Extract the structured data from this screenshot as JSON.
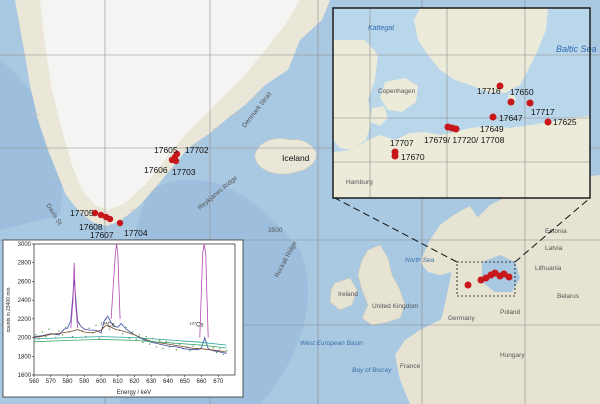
{
  "colors": {
    "ocean": "#a9c8e2",
    "ocean_deep": "#96b9da",
    "land": "#e9e4d6",
    "greenland_ice": "#f3f3f1",
    "inset_sea": "#b9d6ea",
    "inset_land": "#eceadd",
    "marker": "#c8171b",
    "grid": "#8a8a8a"
  },
  "main_map": {
    "labels": {
      "iceland": "Iceland",
      "denmark_strait": "Denmark Strait",
      "davis_strait": "Davis St",
      "rockall": "Rockall Ridge",
      "reykjanes": "Reykjanes Ridge",
      "north_sea": "North Sea",
      "ireland": "Ireland",
      "uk": "United Kingdom",
      "germany": "Germany",
      "poland": "Poland",
      "france": "France",
      "belarus": "Belarus",
      "lithuania": "Lithuania",
      "latvia": "Latvia",
      "estonia": "Estonia",
      "hungary": "Hungary",
      "west_european_basin": "West European Basin",
      "bay_of_biscay": "Bay of Biscay",
      "depth_3500": "3500",
      "greenland_inset_edge": "ark"
    },
    "stations": [
      {
        "id": "17606",
        "label": "17606"
      },
      {
        "id": "17605",
        "label": "17605"
      },
      {
        "id": "17702",
        "label": "17702"
      },
      {
        "id": "17703",
        "label": "17703"
      },
      {
        "id": "17705",
        "label": "17705"
      },
      {
        "id": "17608",
        "label": "17608"
      },
      {
        "id": "17607",
        "label": "17607"
      },
      {
        "id": "17704",
        "label": "17704"
      }
    ]
  },
  "inset_map": {
    "labels": {
      "kattegat": "Kattegat",
      "baltic_sea": "Baltic Sea",
      "copenhagen": "Copenhagen",
      "hamburg": "Hamburg"
    },
    "stations": [
      {
        "id": "17716",
        "label": "17716"
      },
      {
        "id": "17650",
        "label": "17650"
      },
      {
        "id": "17717",
        "label": "17717"
      },
      {
        "id": "17647",
        "label": "17647"
      },
      {
        "id": "17625",
        "label": "17625"
      },
      {
        "id": "17649",
        "label": "17649"
      },
      {
        "id": "17679_17720_17708",
        "label": "17679/ 17720/ 17708"
      },
      {
        "id": "17707",
        "label": "17707"
      },
      {
        "id": "17670",
        "label": "17670"
      }
    ]
  },
  "chart_data": {
    "type": "line",
    "title": "",
    "xlabel": "Energy / keV",
    "ylabel": "counts in 23400 min",
    "xlim": [
      560,
      680
    ],
    "ylim": [
      1600,
      3000
    ],
    "xticks": [
      "560",
      "570",
      "580",
      "590",
      "600",
      "610",
      "620",
      "630",
      "640",
      "650",
      "660",
      "670"
    ],
    "yticks": [
      "1600",
      "1800",
      "2000",
      "2200",
      "2400",
      "2600",
      "2800",
      "3000"
    ],
    "annotations": [
      {
        "text": "134Cs",
        "super": "134",
        "base": "Cs",
        "x": 604,
        "y": 2120
      },
      {
        "text": "137Cs",
        "super": "137",
        "base": "Cs",
        "x": 657,
        "y": 2120
      }
    ],
    "series": [
      {
        "color": "#3b4aa8",
        "x": [
          560,
          565,
          570,
          575,
          578,
          580,
          582,
          584,
          586,
          588,
          590,
          593,
          596,
          598,
          600,
          602,
          604,
          606,
          608,
          610,
          612,
          615,
          620,
          625,
          630,
          635,
          640,
          645,
          650,
          655,
          658,
          660,
          662,
          664,
          667,
          670,
          675
        ],
        "y": [
          2010,
          2020,
          2040,
          2030,
          2090,
          2100,
          2180,
          2620,
          2180,
          2120,
          2090,
          2080,
          2080,
          2070,
          2050,
          2180,
          2230,
          2160,
          2120,
          2110,
          2150,
          2090,
          2030,
          1980,
          1950,
          1930,
          1910,
          1900,
          1880,
          1870,
          1870,
          1890,
          2000,
          1880,
          1860,
          1850,
          1830
        ]
      },
      {
        "color": "#7a4c2a",
        "x": [
          560,
          565,
          570,
          575,
          580,
          583,
          586,
          590,
          595,
          600,
          603,
          606,
          609,
          612,
          615,
          620,
          625,
          630,
          635,
          640,
          645,
          650,
          655,
          660,
          665,
          670,
          675
        ],
        "y": [
          2000,
          2015,
          2035,
          2045,
          2060,
          2070,
          2085,
          2060,
          2050,
          2080,
          2130,
          2110,
          2085,
          2075,
          2060,
          2030,
          1990,
          1960,
          1945,
          1930,
          1915,
          1900,
          1885,
          1880,
          1870,
          1860,
          1845
        ]
      },
      {
        "color": "#b048b0",
        "x": [
          582,
          583.3,
          584,
          584.7,
          586
        ],
        "y": [
          2100,
          2400,
          2800,
          2400,
          2100
        ]
      },
      {
        "color": "#b048b0",
        "x": [
          606,
          608.6,
          609.3,
          610,
          611.4
        ],
        "y": [
          2200,
          2900,
          3000,
          2900,
          2200
        ]
      },
      {
        "color": "#b048b0",
        "x": [
          659,
          660.7,
          661.6,
          662.5,
          664
        ],
        "y": [
          2000,
          2900,
          3000,
          2900,
          2000
        ]
      },
      {
        "color": "#2aa39a",
        "x": [
          560,
          580,
          600,
          620,
          640,
          660,
          675
        ],
        "y": [
          1985,
          2000,
          2010,
          2000,
          1975,
          1950,
          1920
        ]
      },
      {
        "color": "#3aa86a",
        "x": [
          560,
          580,
          600,
          620,
          640,
          660,
          675
        ],
        "y": [
          1955,
          1970,
          1980,
          1970,
          1945,
          1920,
          1890
        ]
      }
    ],
    "scatter": {
      "color": "#4a9c4a",
      "x": [
        561,
        563,
        565,
        567,
        569,
        571,
        573,
        575,
        577,
        579,
        581,
        583,
        587,
        589,
        591,
        593,
        595,
        597,
        599,
        601,
        603,
        605,
        607,
        611,
        613,
        615,
        617,
        619,
        621,
        623,
        625,
        627,
        629,
        631,
        633,
        635,
        637,
        639,
        641,
        643,
        645,
        647,
        649,
        651,
        653,
        655,
        657,
        659,
        665,
        667,
        669,
        671,
        673,
        675
      ],
      "y": [
        2030,
        1990,
        2060,
        2010,
        2090,
        2040,
        2000,
        2070,
        2030,
        2110,
        2060,
        2010,
        2150,
        2070,
        2010,
        2100,
        2050,
        2130,
        1990,
        2110,
        2200,
        2090,
        2140,
        2080,
        2040,
        2110,
        1990,
        2060,
        1980,
        2030,
        1950,
        2010,
        1930,
        1990,
        1900,
        1970,
        1880,
        1960,
        1900,
        1940,
        1870,
        1930,
        1880,
        1900,
        1860,
        1910,
        1880,
        1920,
        1870,
        1890,
        1840,
        1880,
        1820,
        1860
      ]
    }
  }
}
